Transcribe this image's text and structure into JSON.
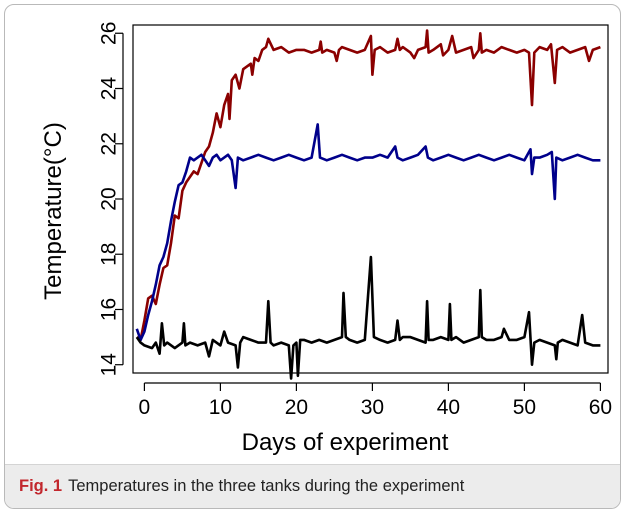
{
  "caption": {
    "label": "Fig. 1",
    "text": "Temperatures in the three tanks during the experiment"
  },
  "chart_data": {
    "type": "line",
    "title": "",
    "xlabel": "Days of experiment",
    "ylabel": "Temperature(°C)",
    "xlim": [
      -1.5,
      61
    ],
    "ylim": [
      13.7,
      26.3
    ],
    "xticks": [
      0,
      10,
      20,
      30,
      40,
      50,
      60
    ],
    "yticks": [
      14,
      16,
      18,
      20,
      22,
      24,
      26
    ],
    "grid": false,
    "legend": "none",
    "series": [
      {
        "color": "#8b0000",
        "points": [
          [
            -1,
            15.0
          ],
          [
            -0.5,
            14.9
          ],
          [
            0,
            15.6
          ],
          [
            0.5,
            16.4
          ],
          [
            1,
            16.5
          ],
          [
            1.5,
            16.2
          ],
          [
            2,
            16.9
          ],
          [
            2.5,
            17.5
          ],
          [
            3,
            17.6
          ],
          [
            3.5,
            18.4
          ],
          [
            4,
            19.4
          ],
          [
            4.5,
            19.3
          ],
          [
            5,
            20.3
          ],
          [
            5.5,
            20.6
          ],
          [
            6,
            20.8
          ],
          [
            6.5,
            21.0
          ],
          [
            7,
            20.9
          ],
          [
            7.5,
            21.3
          ],
          [
            8,
            21.7
          ],
          [
            8.5,
            21.9
          ],
          [
            9,
            22.4
          ],
          [
            9.5,
            23.1
          ],
          [
            10,
            22.6
          ],
          [
            10.5,
            23.4
          ],
          [
            11,
            23.8
          ],
          [
            11.2,
            22.9
          ],
          [
            11.5,
            24.3
          ],
          [
            12,
            24.5
          ],
          [
            12.5,
            24.0
          ],
          [
            13,
            24.7
          ],
          [
            13.5,
            24.8
          ],
          [
            14,
            24.9
          ],
          [
            14.2,
            24.5
          ],
          [
            14.5,
            25.1
          ],
          [
            15,
            25.0
          ],
          [
            15.5,
            25.4
          ],
          [
            16,
            25.5
          ],
          [
            16.3,
            25.8
          ],
          [
            17,
            25.4
          ],
          [
            18,
            25.5
          ],
          [
            19,
            25.3
          ],
          [
            20,
            25.4
          ],
          [
            21,
            25.4
          ],
          [
            22,
            25.3
          ],
          [
            23,
            25.4
          ],
          [
            23.2,
            25.7
          ],
          [
            23.4,
            25.3
          ],
          [
            24,
            25.4
          ],
          [
            25,
            25.3
          ],
          [
            25.3,
            25.0
          ],
          [
            25.6,
            25.4
          ],
          [
            26,
            25.5
          ],
          [
            27,
            25.4
          ],
          [
            28,
            25.3
          ],
          [
            29,
            25.4
          ],
          [
            29.8,
            25.9
          ],
          [
            30,
            24.5
          ],
          [
            30.3,
            25.4
          ],
          [
            31,
            25.5
          ],
          [
            32,
            25.3
          ],
          [
            33,
            25.4
          ],
          [
            33.3,
            25.8
          ],
          [
            33.6,
            25.4
          ],
          [
            34,
            25.5
          ],
          [
            35,
            25.3
          ],
          [
            35.5,
            25.1
          ],
          [
            36,
            25.4
          ],
          [
            37,
            25.5
          ],
          [
            37.2,
            26.1
          ],
          [
            37.4,
            25.3
          ],
          [
            38,
            25.4
          ],
          [
            39,
            25.6
          ],
          [
            39.3,
            25.2
          ],
          [
            40,
            25.4
          ],
          [
            40.5,
            25.9
          ],
          [
            41,
            25.3
          ],
          [
            42,
            25.4
          ],
          [
            43,
            25.5
          ],
          [
            43.3,
            25.1
          ],
          [
            44,
            25.4
          ],
          [
            44.2,
            26.0
          ],
          [
            44.4,
            25.3
          ],
          [
            45,
            25.4
          ],
          [
            46,
            25.3
          ],
          [
            47,
            25.5
          ],
          [
            48,
            25.4
          ],
          [
            49,
            25.3
          ],
          [
            50,
            25.4
          ],
          [
            50.6,
            25.3
          ],
          [
            51,
            23.4
          ],
          [
            51.3,
            25.3
          ],
          [
            52,
            25.5
          ],
          [
            53,
            25.4
          ],
          [
            53.5,
            25.6
          ],
          [
            54,
            24.2
          ],
          [
            54.3,
            25.4
          ],
          [
            55,
            25.5
          ],
          [
            56,
            25.3
          ],
          [
            57,
            25.4
          ],
          [
            58,
            25.5
          ],
          [
            58.5,
            25.0
          ],
          [
            59,
            25.4
          ],
          [
            60,
            25.5
          ]
        ]
      },
      {
        "color": "#00008b",
        "points": [
          [
            -1,
            15.3
          ],
          [
            -0.5,
            14.9
          ],
          [
            0,
            15.2
          ],
          [
            0.5,
            15.8
          ],
          [
            1,
            16.3
          ],
          [
            1.5,
            16.9
          ],
          [
            2,
            17.6
          ],
          [
            2.5,
            17.9
          ],
          [
            3,
            18.4
          ],
          [
            3.5,
            19.2
          ],
          [
            4,
            19.9
          ],
          [
            4.5,
            20.5
          ],
          [
            5,
            20.6
          ],
          [
            5.5,
            21.0
          ],
          [
            6,
            21.5
          ],
          [
            6.5,
            21.4
          ],
          [
            7,
            21.5
          ],
          [
            7.5,
            21.6
          ],
          [
            8,
            21.4
          ],
          [
            8.5,
            21.2
          ],
          [
            9,
            21.5
          ],
          [
            9.5,
            21.6
          ],
          [
            10,
            21.4
          ],
          [
            10.5,
            21.5
          ],
          [
            11,
            21.6
          ],
          [
            11.5,
            21.4
          ],
          [
            12,
            20.4
          ],
          [
            12.3,
            21.5
          ],
          [
            13,
            21.4
          ],
          [
            14,
            21.5
          ],
          [
            15,
            21.6
          ],
          [
            16,
            21.5
          ],
          [
            17,
            21.4
          ],
          [
            18,
            21.5
          ],
          [
            19,
            21.6
          ],
          [
            20,
            21.5
          ],
          [
            21,
            21.4
          ],
          [
            22,
            21.5
          ],
          [
            22.8,
            22.7
          ],
          [
            23.1,
            21.5
          ],
          [
            24,
            21.4
          ],
          [
            25,
            21.5
          ],
          [
            26,
            21.6
          ],
          [
            27,
            21.5
          ],
          [
            28,
            21.4
          ],
          [
            29,
            21.5
          ],
          [
            30,
            21.5
          ],
          [
            31,
            21.6
          ],
          [
            32,
            21.5
          ],
          [
            33,
            21.9
          ],
          [
            33.3,
            21.5
          ],
          [
            34,
            21.4
          ],
          [
            35,
            21.5
          ],
          [
            36,
            21.6
          ],
          [
            37,
            21.9
          ],
          [
            37.3,
            21.5
          ],
          [
            38,
            21.4
          ],
          [
            39,
            21.5
          ],
          [
            40,
            21.6
          ],
          [
            41,
            21.5
          ],
          [
            42,
            21.4
          ],
          [
            43,
            21.5
          ],
          [
            44,
            21.6
          ],
          [
            45,
            21.5
          ],
          [
            46,
            21.4
          ],
          [
            47,
            21.5
          ],
          [
            48,
            21.6
          ],
          [
            49,
            21.5
          ],
          [
            50,
            21.4
          ],
          [
            50.8,
            21.8
          ],
          [
            51,
            20.9
          ],
          [
            51.3,
            21.5
          ],
          [
            52,
            21.5
          ],
          [
            53,
            21.6
          ],
          [
            53.6,
            21.7
          ],
          [
            54,
            20.0
          ],
          [
            54.2,
            21.5
          ],
          [
            55,
            21.4
          ],
          [
            56,
            21.5
          ],
          [
            57,
            21.6
          ],
          [
            58,
            21.5
          ],
          [
            59,
            21.4
          ],
          [
            60,
            21.4
          ]
        ]
      },
      {
        "color": "#000000",
        "points": [
          [
            -1,
            15.0
          ],
          [
            -0.5,
            14.8
          ],
          [
            0,
            14.7
          ],
          [
            1,
            14.6
          ],
          [
            1.5,
            14.8
          ],
          [
            2,
            14.4
          ],
          [
            2.3,
            15.5
          ],
          [
            2.6,
            14.7
          ],
          [
            3,
            14.8
          ],
          [
            4,
            14.6
          ],
          [
            5,
            14.8
          ],
          [
            5.2,
            15.5
          ],
          [
            5.4,
            14.7
          ],
          [
            6,
            14.8
          ],
          [
            7,
            14.7
          ],
          [
            8,
            14.8
          ],
          [
            8.5,
            14.3
          ],
          [
            9,
            14.9
          ],
          [
            10,
            14.7
          ],
          [
            10.5,
            15.2
          ],
          [
            11,
            14.8
          ],
          [
            12,
            14.7
          ],
          [
            12.3,
            13.9
          ],
          [
            12.6,
            14.8
          ],
          [
            13,
            15.0
          ],
          [
            14,
            14.9
          ],
          [
            15,
            14.8
          ],
          [
            16,
            14.8
          ],
          [
            16.3,
            16.3
          ],
          [
            16.6,
            14.8
          ],
          [
            17,
            14.7
          ],
          [
            18,
            14.8
          ],
          [
            19,
            14.7
          ],
          [
            19.3,
            13.5
          ],
          [
            19.6,
            14.7
          ],
          [
            20,
            14.8
          ],
          [
            20.2,
            13.6
          ],
          [
            20.5,
            14.9
          ],
          [
            21,
            14.9
          ],
          [
            22,
            14.8
          ],
          [
            23,
            14.9
          ],
          [
            24,
            14.8
          ],
          [
            25,
            14.9
          ],
          [
            26,
            15.0
          ],
          [
            26.2,
            16.6
          ],
          [
            26.5,
            15.0
          ],
          [
            27,
            14.9
          ],
          [
            28,
            14.8
          ],
          [
            29,
            14.9
          ],
          [
            29.8,
            17.9
          ],
          [
            30.2,
            15.0
          ],
          [
            31,
            14.9
          ],
          [
            32,
            14.8
          ],
          [
            33,
            14.9
          ],
          [
            33.3,
            15.6
          ],
          [
            33.6,
            14.9
          ],
          [
            34,
            15.0
          ],
          [
            35,
            15.0
          ],
          [
            36,
            14.9
          ],
          [
            37,
            14.8
          ],
          [
            37.2,
            16.3
          ],
          [
            37.4,
            14.9
          ],
          [
            38,
            14.9
          ],
          [
            39,
            15.0
          ],
          [
            40,
            14.9
          ],
          [
            40.2,
            16.2
          ],
          [
            40.4,
            14.9
          ],
          [
            41,
            15.0
          ],
          [
            42,
            14.8
          ],
          [
            43,
            14.9
          ],
          [
            44,
            15.0
          ],
          [
            44.2,
            16.7
          ],
          [
            44.4,
            15.0
          ],
          [
            45,
            14.9
          ],
          [
            46,
            14.9
          ],
          [
            47,
            15.0
          ],
          [
            47.3,
            15.3
          ],
          [
            48,
            14.9
          ],
          [
            49,
            14.9
          ],
          [
            50,
            15.0
          ],
          [
            50.6,
            15.9
          ],
          [
            51,
            14.0
          ],
          [
            51.3,
            14.8
          ],
          [
            52,
            14.9
          ],
          [
            53,
            14.8
          ],
          [
            54,
            14.7
          ],
          [
            54.2,
            14.2
          ],
          [
            54.4,
            14.8
          ],
          [
            55,
            14.9
          ],
          [
            56,
            14.8
          ],
          [
            57,
            14.7
          ],
          [
            57.6,
            15.8
          ],
          [
            58,
            14.8
          ],
          [
            59,
            14.7
          ],
          [
            60,
            14.7
          ]
        ]
      }
    ]
  }
}
